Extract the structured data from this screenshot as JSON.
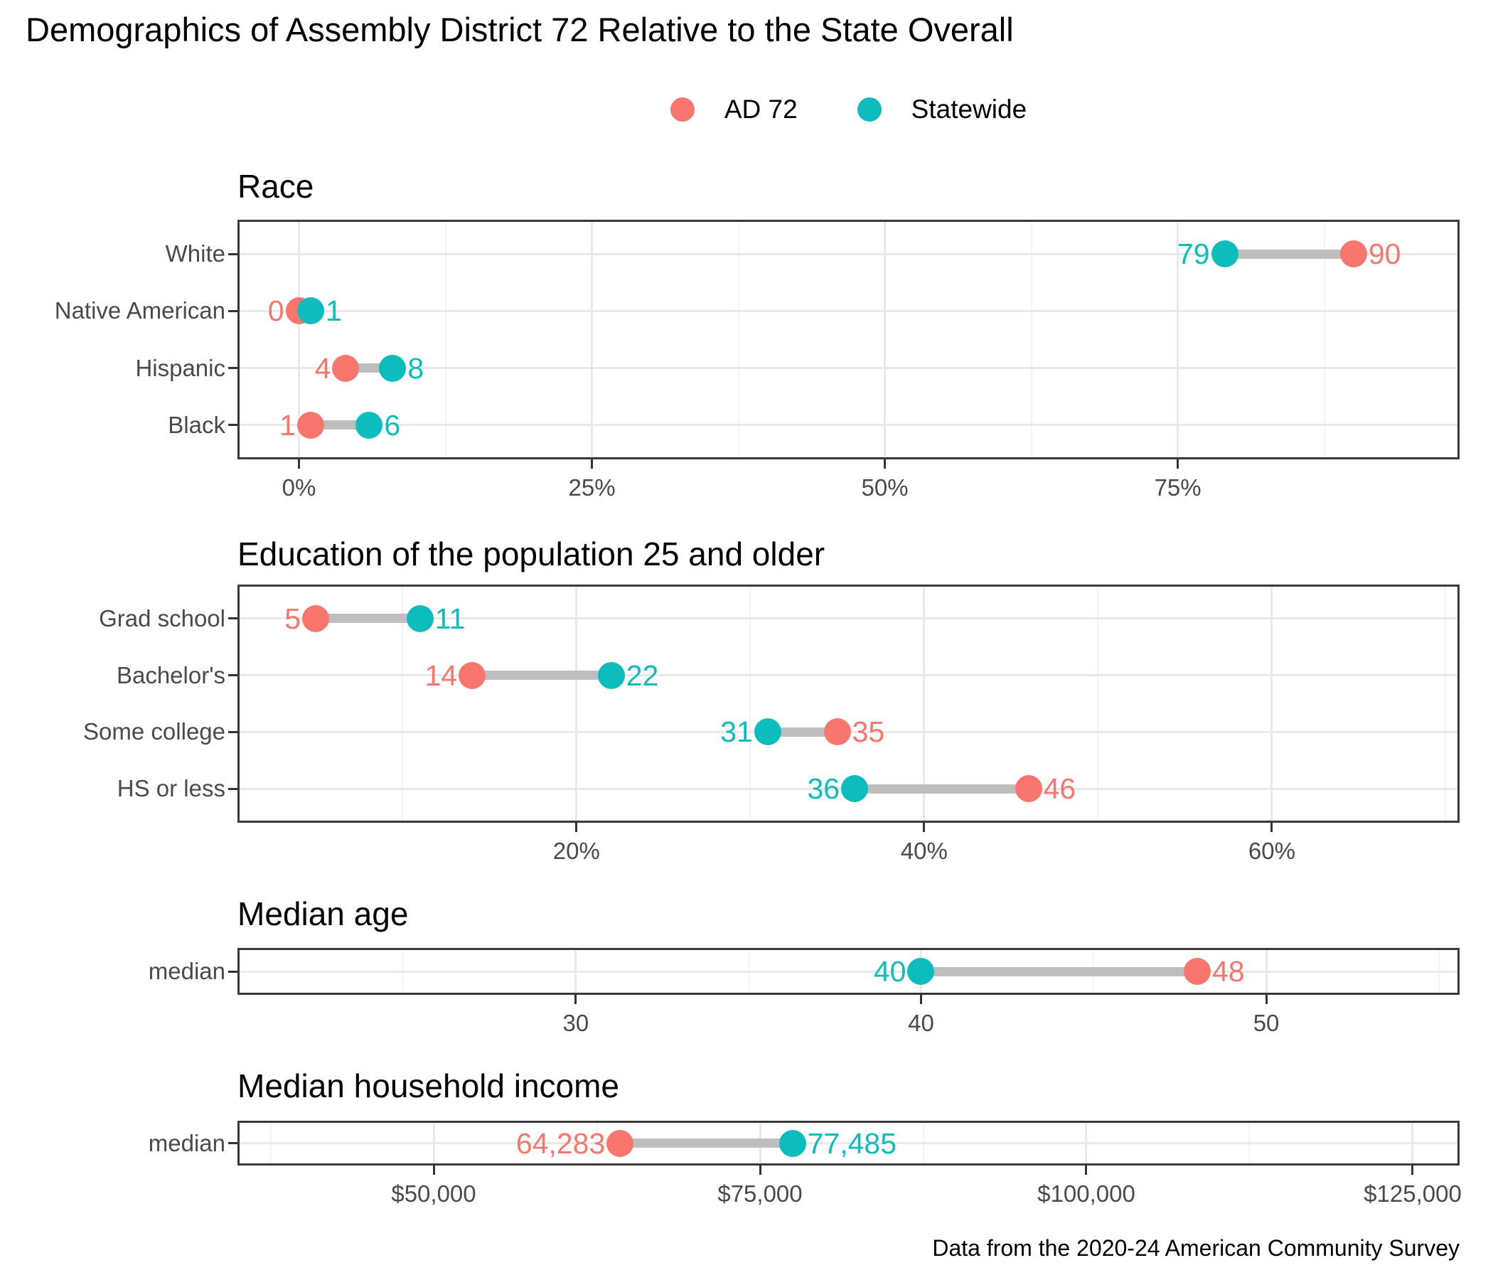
{
  "title": "Demographics of Assembly District 72 Relative to the State Overall",
  "caption": "Data from the 2020-24 American Community Survey",
  "legend": {
    "items": [
      {
        "label": "AD 72",
        "color": "#F8766D"
      },
      {
        "label": "Statewide",
        "color": "#0DBDBE"
      }
    ]
  },
  "colors": {
    "ad72": "#F8766D",
    "statewide": "#0DBDBE",
    "connector": "#BEBEBE",
    "grid_major": "#E9E9E9",
    "grid_minor": "#F3F3F3",
    "panel_border": "#3A3A3A",
    "axis_text": "#4A4A4A",
    "tick_mark": "#333333"
  },
  "chart_data": [
    {
      "type": "scatter",
      "variant": "dumbbell",
      "title": "Race",
      "categories": [
        "White",
        "Native American",
        "Hispanic",
        "Black"
      ],
      "series": [
        {
          "name": "AD 72",
          "color_key": "ad72",
          "values": [
            90,
            0,
            4,
            1
          ],
          "labels": [
            "90",
            "0",
            "4",
            "1"
          ]
        },
        {
          "name": "Statewide",
          "color_key": "statewide",
          "values": [
            79,
            1,
            8,
            6
          ],
          "labels": [
            "79",
            "1",
            "8",
            "6"
          ]
        }
      ],
      "x_ticks": [
        {
          "value": 0,
          "label": "0%"
        },
        {
          "value": 25,
          "label": "25%"
        },
        {
          "value": 50,
          "label": "50%"
        },
        {
          "value": 75,
          "label": "75%"
        }
      ],
      "x_minor": [
        12.5,
        37.5,
        62.5,
        87.5
      ],
      "xlim": [
        -5.25,
        99.05
      ],
      "grid": true,
      "legend_position": "top"
    },
    {
      "type": "scatter",
      "variant": "dumbbell",
      "title": "Education of the population 25 and older",
      "categories": [
        "Grad school",
        "Bachelor's",
        "Some college",
        "HS or less"
      ],
      "series": [
        {
          "name": "AD 72",
          "color_key": "ad72",
          "values": [
            5,
            14,
            35,
            46
          ],
          "labels": [
            "5",
            "14",
            "35",
            "46"
          ]
        },
        {
          "name": "Statewide",
          "color_key": "statewide",
          "values": [
            11,
            22,
            31,
            36
          ],
          "labels": [
            "11",
            "22",
            "31",
            "36"
          ]
        }
      ],
      "x_ticks": [
        {
          "value": 20,
          "label": "20%"
        },
        {
          "value": 40,
          "label": "40%"
        },
        {
          "value": 60,
          "label": "60%"
        }
      ],
      "x_minor": [
        10,
        30,
        50,
        70
      ],
      "xlim": [
        0.5,
        70.8
      ],
      "grid": true,
      "legend_position": "top"
    },
    {
      "type": "scatter",
      "variant": "dumbbell",
      "title": "Median age",
      "categories": [
        "median"
      ],
      "series": [
        {
          "name": "AD 72",
          "color_key": "ad72",
          "values": [
            48
          ],
          "labels": [
            "48"
          ]
        },
        {
          "name": "Statewide",
          "color_key": "statewide",
          "values": [
            40
          ],
          "labels": [
            "40"
          ]
        }
      ],
      "x_ticks": [
        {
          "value": 30,
          "label": "30"
        },
        {
          "value": 40,
          "label": "40"
        },
        {
          "value": 50,
          "label": "50"
        }
      ],
      "x_minor": [
        25,
        35,
        45,
        55
      ],
      "xlim": [
        20.2,
        55.6
      ],
      "grid": true,
      "legend_position": "top"
    },
    {
      "type": "scatter",
      "variant": "dumbbell",
      "title": "Median household income",
      "categories": [
        "median"
      ],
      "series": [
        {
          "name": "AD 72",
          "color_key": "ad72",
          "values": [
            64283
          ],
          "labels": [
            "64,283"
          ]
        },
        {
          "name": "Statewide",
          "color_key": "statewide",
          "values": [
            77485
          ],
          "labels": [
            "77,485"
          ]
        }
      ],
      "x_ticks": [
        {
          "value": 50000,
          "label": "$50,000"
        },
        {
          "value": 75000,
          "label": "$75,000"
        },
        {
          "value": 100000,
          "label": "$100,000"
        },
        {
          "value": 125000,
          "label": "$125,000"
        }
      ],
      "x_minor": [
        37500,
        62500,
        87500,
        112500
      ],
      "xlim": [
        34967,
        128595
      ],
      "grid": true,
      "legend_position": "top"
    }
  ]
}
